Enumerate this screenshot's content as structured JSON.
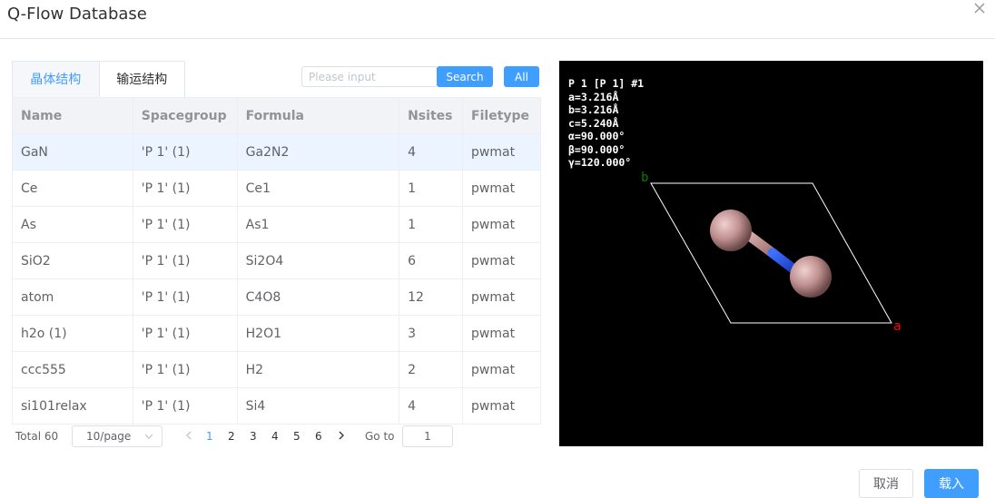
{
  "dialog": {
    "title": "Q-Flow Database",
    "close_icon": "close-icon"
  },
  "tabs": [
    {
      "label": "晶体结构",
      "active": false
    },
    {
      "label": "输运结构",
      "active": true
    }
  ],
  "search": {
    "placeholder": "Please input",
    "value": "",
    "search_label": "Search",
    "all_label": "All"
  },
  "table": {
    "headers": [
      "Name",
      "Spacegroup",
      "Formula",
      "Nsites",
      "Filetype"
    ],
    "rows": [
      {
        "name": "GaN",
        "spacegroup": "'P 1' (1)",
        "formula": "Ga2N2",
        "nsites": "4",
        "filetype": "pwmat",
        "selected": true
      },
      {
        "name": "Ce",
        "spacegroup": "'P 1' (1)",
        "formula": "Ce1",
        "nsites": "1",
        "filetype": "pwmat"
      },
      {
        "name": "As",
        "spacegroup": "'P 1' (1)",
        "formula": "As1",
        "nsites": "1",
        "filetype": "pwmat"
      },
      {
        "name": "SiO2",
        "spacegroup": "'P 1' (1)",
        "formula": "Si2O4",
        "nsites": "6",
        "filetype": "pwmat"
      },
      {
        "name": "atom",
        "spacegroup": "'P 1' (1)",
        "formula": "C4O8",
        "nsites": "12",
        "filetype": "pwmat"
      },
      {
        "name": "h2o (1)",
        "spacegroup": "'P 1' (1)",
        "formula": "H2O1",
        "nsites": "3",
        "filetype": "pwmat"
      },
      {
        "name": "ccc555",
        "spacegroup": "'P 1' (1)",
        "formula": "H2",
        "nsites": "2",
        "filetype": "pwmat"
      },
      {
        "name": "si101relax",
        "spacegroup": "'P 1' (1)",
        "formula": "Si4",
        "nsites": "4",
        "filetype": "pwmat"
      }
    ]
  },
  "pagination": {
    "total_label": "Total 60",
    "page_size_label": "10/page",
    "pages": [
      "1",
      "2",
      "3",
      "4",
      "5",
      "6"
    ],
    "current_page": "1",
    "goto_label": "Go to",
    "goto_value": "1"
  },
  "viewer": {
    "info_lines": [
      "P 1 [P 1] #1",
      "a=3.216Å",
      "b=3.216Å",
      "c=5.240Å",
      "α=90.000°",
      "β=90.000°",
      "γ=120.000°"
    ],
    "axis_a_label": "a",
    "axis_b_label": "b",
    "colors": {
      "background": "#000000",
      "cell_edge": "#ffffff",
      "atom": "#c09090",
      "bond_light": "#d0a0a0",
      "bond_dark": "#2050e0",
      "axis_a": "#ff0000",
      "axis_b": "#008000"
    }
  },
  "footer": {
    "cancel_label": "取消",
    "load_label": "载入"
  },
  "theme": {
    "primary": "#409eff",
    "border": "#dcdfe6"
  }
}
